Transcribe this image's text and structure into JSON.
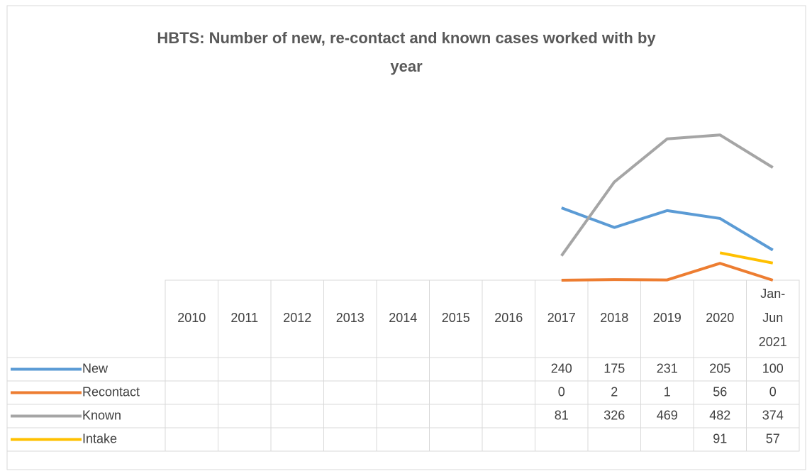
{
  "chart_data": {
    "type": "line",
    "title": "HBTS: Number of new, re-contact and known cases worked with by year",
    "categories": [
      "2010",
      "2011",
      "2012",
      "2013",
      "2014",
      "2015",
      "2016",
      "2017",
      "2018",
      "2019",
      "2020",
      "Jan-Jun 2021"
    ],
    "series": [
      {
        "name": "New",
        "color": "#5b9bd5",
        "values": [
          null,
          null,
          null,
          null,
          null,
          null,
          null,
          240,
          175,
          231,
          205,
          100
        ]
      },
      {
        "name": "Recontact",
        "color": "#ed7d31",
        "values": [
          null,
          null,
          null,
          null,
          null,
          null,
          null,
          0,
          2,
          1,
          56,
          0
        ]
      },
      {
        "name": "Known",
        "color": "#a5a5a5",
        "values": [
          null,
          null,
          null,
          null,
          null,
          null,
          null,
          81,
          326,
          469,
          482,
          374
        ]
      },
      {
        "name": "Intake",
        "color": "#ffc000",
        "values": [
          null,
          null,
          null,
          null,
          null,
          null,
          null,
          null,
          null,
          null,
          91,
          57
        ]
      }
    ]
  }
}
